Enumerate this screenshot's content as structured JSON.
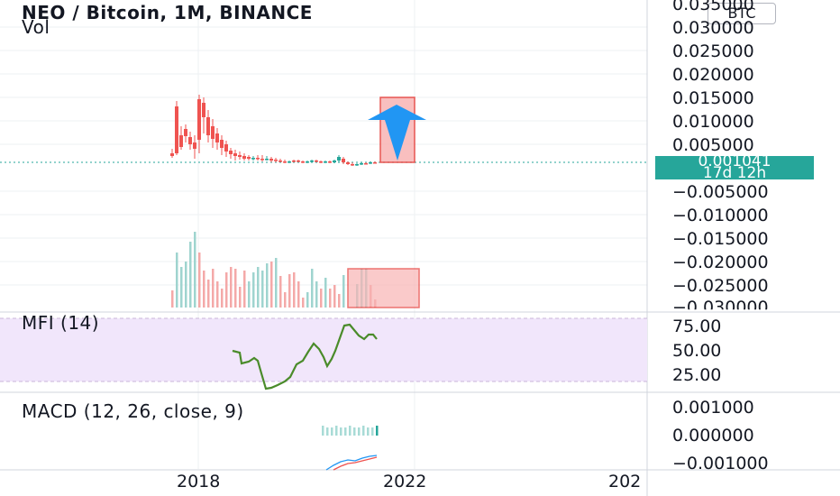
{
  "header": {
    "symbol_title": "NEO / Bitcoin, 1M, BINANCE",
    "volume_label": "Vol",
    "currency_badge": "BTC"
  },
  "price_axis": {
    "labels": [
      "0.035000",
      "0.030000",
      "0.025000",
      "0.020000",
      "0.015000",
      "0.010000",
      "0.005000",
      "0.000000",
      "−0.005000",
      "−0.010000",
      "−0.015000",
      "−0.020000",
      "−0.025000",
      "−0.030000"
    ]
  },
  "last_price": {
    "value": "0.001041",
    "countdown": "17d 12h",
    "color": "#26a69a"
  },
  "mfi": {
    "title": "MFI (14)",
    "axis_labels": [
      "75.00",
      "50.00",
      "25.00"
    ],
    "band_color": "#f1e6fb",
    "line_color": "#4caf50"
  },
  "macd": {
    "title": "MACD (12, 26, close, 9)",
    "axis_labels": [
      "0.001000",
      "0.000000",
      "−0.001000"
    ]
  },
  "time_axis": {
    "labels": [
      "2018",
      "2022",
      "202"
    ]
  },
  "colors": {
    "up": "#26a69a",
    "down": "#ef5350",
    "arrow": "#2196f3",
    "highlight_fill": "#f8b4b4",
    "highlight_border": "#e53935"
  },
  "chart_data": {
    "type": "candlestick",
    "series": [
      {
        "name": "NEO / Bitcoin, 1M, BINANCE",
        "values": "monthly OHLC, Sep 2017 – Jun 2021"
      }
    ],
    "ylim": [
      -0.03,
      0.035
    ]
  }
}
